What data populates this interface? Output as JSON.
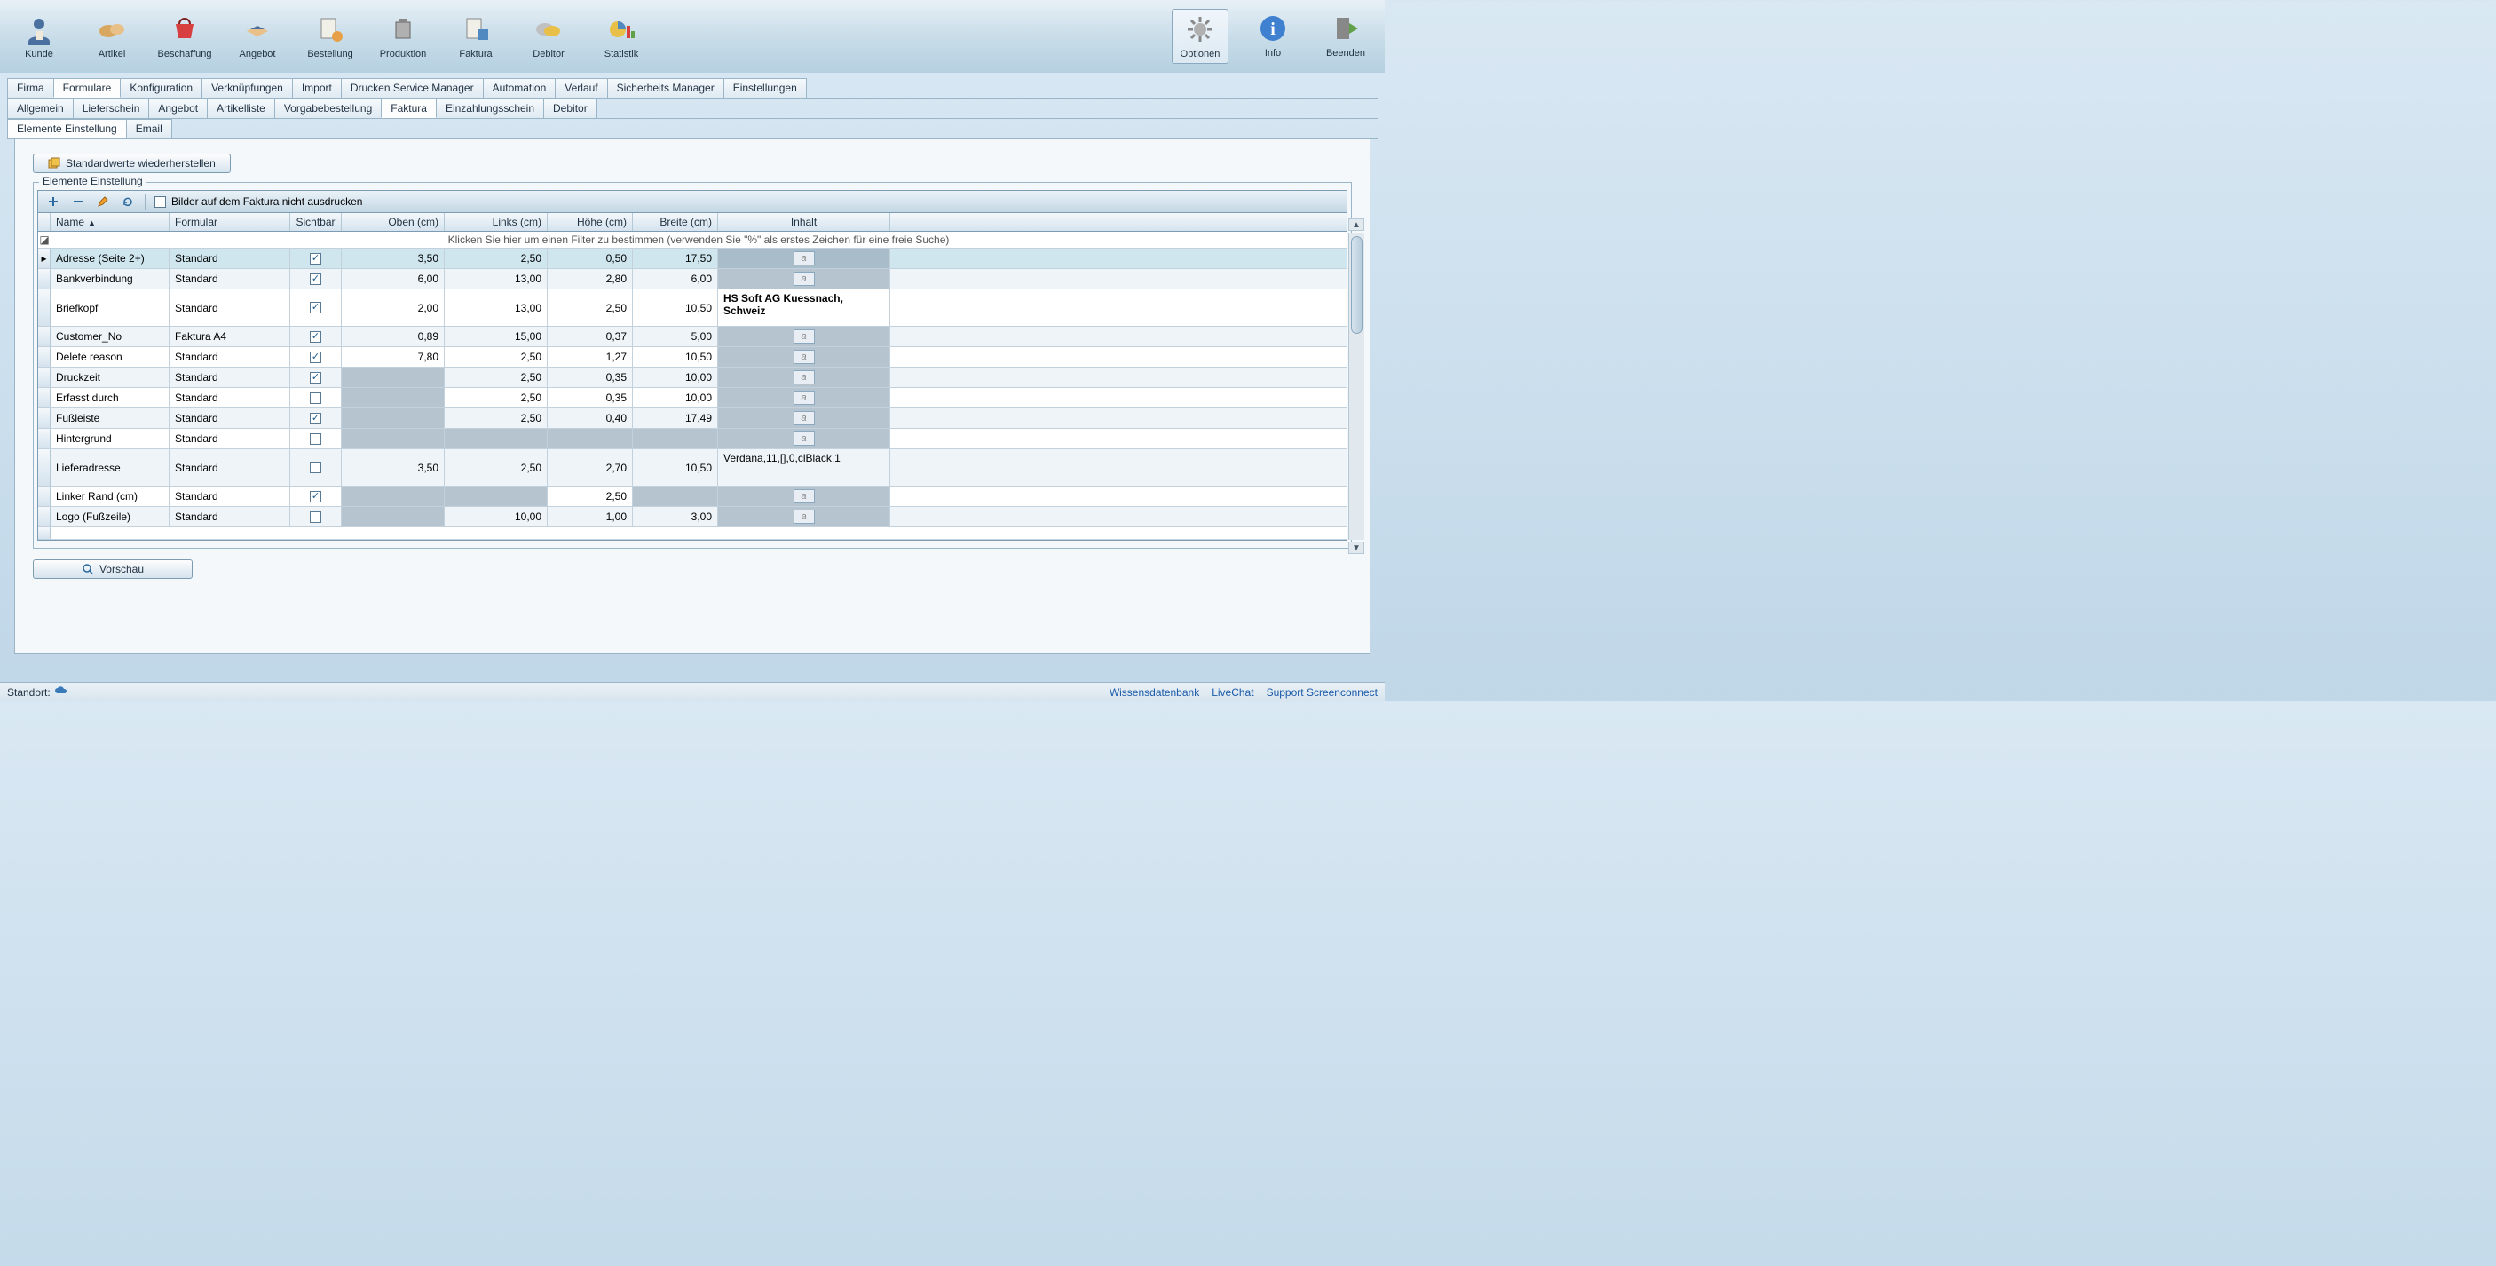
{
  "toolbar": {
    "left": [
      {
        "key": "kunde",
        "label": "Kunde"
      },
      {
        "key": "artikel",
        "label": "Artikel"
      },
      {
        "key": "beschaffung",
        "label": "Beschaffung"
      },
      {
        "key": "angebot",
        "label": "Angebot"
      },
      {
        "key": "bestellung",
        "label": "Bestellung"
      },
      {
        "key": "produktion",
        "label": "Produktion"
      },
      {
        "key": "faktura",
        "label": "Faktura"
      },
      {
        "key": "debitor",
        "label": "Debitor"
      },
      {
        "key": "statistik",
        "label": "Statistik"
      }
    ],
    "right": [
      {
        "key": "optionen",
        "label": "Optionen",
        "active": true
      },
      {
        "key": "info",
        "label": "Info"
      },
      {
        "key": "beenden",
        "label": "Beenden"
      }
    ]
  },
  "tabs": {
    "row1": [
      "Firma",
      "Formulare",
      "Konfiguration",
      "Verknüpfungen",
      "Import",
      "Drucken Service Manager",
      "Automation",
      "Verlauf",
      "Sicherheits Manager",
      "Einstellungen"
    ],
    "row1_active": 1,
    "row2": [
      "Allgemein",
      "Lieferschein",
      "Angebot",
      "Artikelliste",
      "Vorgabebestellung",
      "Faktura",
      "Einzahlungsschein",
      "Debitor"
    ],
    "row2_active": 5,
    "row3": [
      "Elemente Einstellung",
      "Email"
    ],
    "row3_active": 0
  },
  "buttons": {
    "restore_defaults": "Standardwerte wiederherstellen",
    "preview": "Vorschau"
  },
  "groupbox_title": "Elemente Einstellung",
  "grid_toolbar": {
    "checkbox_label": "Bilder auf dem Faktura nicht ausdrucken",
    "checkbox_checked": false
  },
  "columns": {
    "name": "Name",
    "formular": "Formular",
    "sichtbar": "Sichtbar",
    "oben": "Oben (cm)",
    "links": "Links (cm)",
    "hoehe": "Höhe (cm)",
    "breite": "Breite (cm)",
    "inhalt": "Inhalt"
  },
  "filter_hint": "Klicken Sie hier um einen Filter zu bestimmen (verwenden Sie \"%\" als erstes Zeichen für eine freie Suche)",
  "rows": [
    {
      "name": "Adresse (Seite 2+)",
      "formular": "Standard",
      "sichtbar": true,
      "oben": "3,50",
      "links": "2,50",
      "hoehe": "0,50",
      "breite": "17,50",
      "inhalt": "",
      "font_btn": true,
      "selected": true,
      "tall": false
    },
    {
      "name": "Bankverbindung",
      "formular": "Standard",
      "sichtbar": true,
      "oben": "6,00",
      "links": "13,00",
      "hoehe": "2,80",
      "breite": "6,00",
      "inhalt": "",
      "font_btn": true,
      "tall": false
    },
    {
      "name": "Briefkopf",
      "formular": "Standard",
      "sichtbar": true,
      "oben": "2,00",
      "links": "13,00",
      "hoehe": "2,50",
      "breite": "10,50",
      "inhalt": "HS Soft AG Kuessnach, Schweiz",
      "inhalt_bold": true,
      "tall": true
    },
    {
      "name": "Customer_No",
      "formular": "Faktura A4",
      "sichtbar": true,
      "oben": "0,89",
      "links": "15,00",
      "hoehe": "0,37",
      "breite": "5,00",
      "inhalt": "",
      "font_btn": true,
      "tall": false
    },
    {
      "name": "Delete reason",
      "formular": "Standard",
      "sichtbar": true,
      "oben": "7,80",
      "links": "2,50",
      "hoehe": "1,27",
      "breite": "10,50",
      "inhalt": "",
      "font_btn": true,
      "tall": false
    },
    {
      "name": "Druckzeit",
      "formular": "Standard",
      "sichtbar": true,
      "oben": "",
      "links": "2,50",
      "hoehe": "0,35",
      "breite": "10,00",
      "inhalt": "",
      "font_btn": true,
      "oben_disabled": true,
      "tall": false
    },
    {
      "name": "Erfasst durch",
      "formular": "Standard",
      "sichtbar": false,
      "oben": "",
      "links": "2,50",
      "hoehe": "0,35",
      "breite": "10,00",
      "inhalt": "",
      "font_btn": true,
      "oben_disabled": true,
      "tall": false
    },
    {
      "name": "Fußleiste",
      "formular": "Standard",
      "sichtbar": true,
      "oben": "",
      "links": "2,50",
      "hoehe": "0,40",
      "breite": "17,49",
      "inhalt": "",
      "font_btn": true,
      "oben_disabled": true,
      "tall": false
    },
    {
      "name": "Hintergrund",
      "formular": "Standard",
      "sichtbar": false,
      "oben": "",
      "links": "",
      "hoehe": "",
      "breite": "",
      "inhalt": "",
      "font_btn": true,
      "oben_disabled": true,
      "links_disabled": true,
      "hoehe_disabled": true,
      "breite_disabled": true,
      "tall": false
    },
    {
      "name": "Lieferadresse",
      "formular": "Standard",
      "sichtbar": false,
      "oben": "3,50",
      "links": "2,50",
      "hoehe": "2,70",
      "breite": "10,50",
      "inhalt": "Verdana,11,[],0,clBlack,1",
      "tall": true
    },
    {
      "name": "Linker Rand (cm)",
      "formular": "Standard",
      "sichtbar": true,
      "oben": "",
      "links": "",
      "hoehe": "2,50",
      "breite": "",
      "inhalt": "",
      "font_btn": true,
      "oben_disabled": true,
      "links_disabled": true,
      "breite_disabled": true,
      "tall": false
    },
    {
      "name": "Logo (Fußzeile)",
      "formular": "Standard",
      "sichtbar": false,
      "oben": "",
      "links": "10,00",
      "hoehe": "1,00",
      "breite": "3,00",
      "inhalt": "",
      "font_btn": true,
      "oben_disabled": true,
      "tall": false
    }
  ],
  "statusbar": {
    "left_label": "Standort:",
    "links": [
      "Wissensdatenbank",
      "LiveChat",
      "Support Screenconnect"
    ]
  },
  "colors": {
    "header_grad_top": "#e8f0f6",
    "header_grad_bot": "#b5d0e0",
    "border": "#9ab4c8",
    "sel_row": "#cfe6ef",
    "disabled_cell": "#b6c4cf"
  }
}
